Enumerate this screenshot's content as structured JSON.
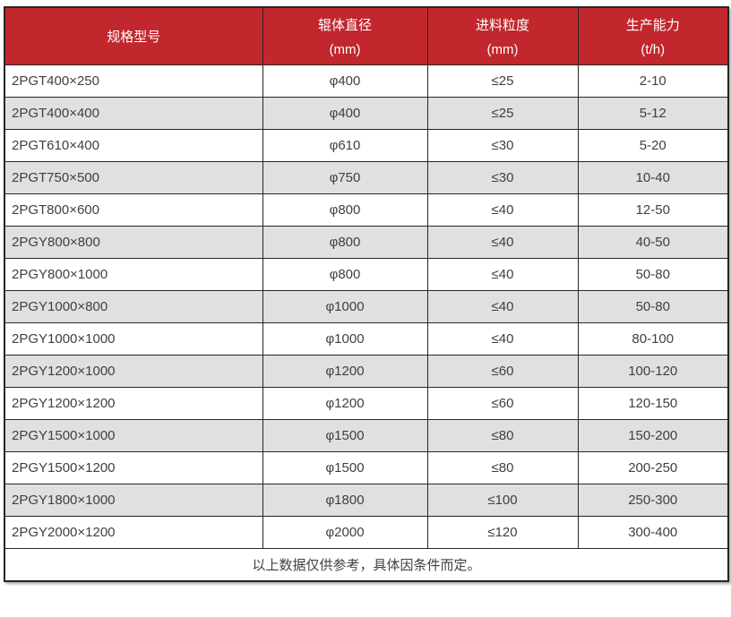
{
  "chart_data": {
    "type": "table",
    "columns": [
      {
        "title": "规格型号",
        "unit": ""
      },
      {
        "title": "辊体直径",
        "unit": "(mm)"
      },
      {
        "title": "进料粒度",
        "unit": "(mm)"
      },
      {
        "title": "生产能力",
        "unit": "(t/h)"
      }
    ],
    "rows": [
      [
        "2PGT400×250",
        "φ400",
        "≤25",
        "2-10"
      ],
      [
        "2PGT400×400",
        "φ400",
        "≤25",
        "5-12"
      ],
      [
        "2PGT610×400",
        "φ610",
        "≤30",
        "5-20"
      ],
      [
        "2PGT750×500",
        "φ750",
        "≤30",
        "10-40"
      ],
      [
        "2PGT800×600",
        "φ800",
        "≤40",
        "12-50"
      ],
      [
        "2PGY800×800",
        "φ800",
        "≤40",
        "40-50"
      ],
      [
        "2PGY800×1000",
        "φ800",
        "≤40",
        "50-80"
      ],
      [
        "2PGY1000×800",
        "φ1000",
        "≤40",
        "50-80"
      ],
      [
        "2PGY1000×1000",
        "φ1000",
        "≤40",
        "80-100"
      ],
      [
        "2PGY1200×1000",
        "φ1200",
        "≤60",
        "100-120"
      ],
      [
        "2PGY1200×1200",
        "φ1200",
        "≤60",
        "120-150"
      ],
      [
        "2PGY1500×1000",
        "φ1500",
        "≤80",
        "150-200"
      ],
      [
        "2PGY1500×1200",
        "φ1500",
        "≤80",
        "200-250"
      ],
      [
        "2PGY1800×1000",
        "φ1800",
        "≤100",
        "250-300"
      ],
      [
        "2PGY2000×1200",
        "φ2000",
        "≤120",
        "300-400"
      ]
    ],
    "footer_note": "以上数据仅供参考，具体因条件而定。",
    "layout_hints": {
      "striped": true,
      "header_position": "top"
    }
  },
  "colors": {
    "header_bg": "#c1272d",
    "header_text": "#ffffff",
    "row_bg": "#ffffff",
    "row_alt_bg": "#e0e0e0",
    "border": "#262626",
    "body_text": "#404040"
  }
}
